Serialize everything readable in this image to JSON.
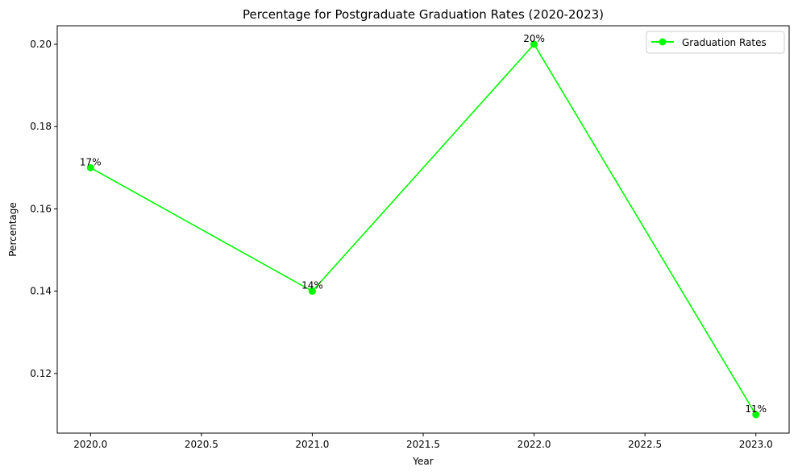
{
  "chart_data": {
    "type": "line",
    "title": "Percentage for Postgraduate Graduation Rates (2020-2023)",
    "xlabel": "Year",
    "ylabel": "Percentage",
    "x": [
      2020,
      2021,
      2022,
      2023
    ],
    "series": [
      {
        "name": "Graduation Rates",
        "values": [
          0.17,
          0.14,
          0.2,
          0.11
        ],
        "labels": [
          "17%",
          "14%",
          "20%",
          "11%"
        ],
        "color": "#00ff00",
        "marker": "circle"
      }
    ],
    "xticks": [
      2020.0,
      2020.5,
      2021.0,
      2021.5,
      2022.0,
      2022.5,
      2023.0
    ],
    "xtick_labels": [
      "2020.0",
      "2020.5",
      "2021.0",
      "2021.5",
      "2022.0",
      "2022.5",
      "2023.0"
    ],
    "yticks": [
      0.12,
      0.14,
      0.16,
      0.18,
      0.2
    ],
    "ytick_labels": [
      "0.12",
      "0.14",
      "0.16",
      "0.18",
      "0.20"
    ],
    "xlim": [
      2019.85,
      2023.15
    ],
    "ylim": [
      0.1055,
      0.2045
    ],
    "grid": false,
    "legend_position": "top-right"
  }
}
